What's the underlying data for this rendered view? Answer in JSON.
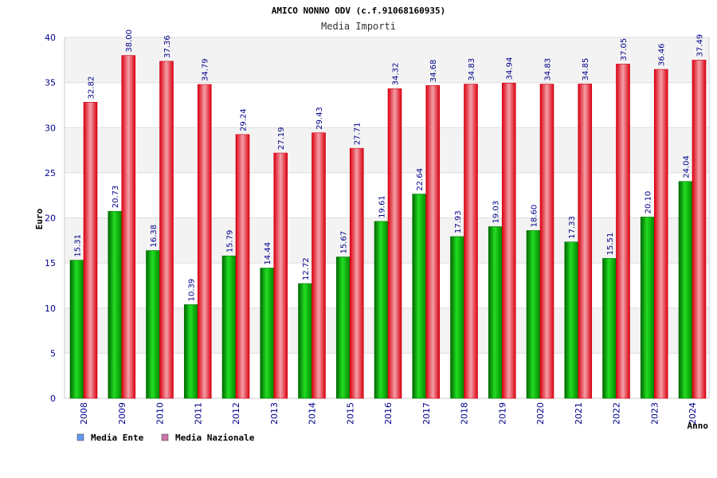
{
  "chart_data": {
    "type": "bar",
    "title": "AMICO NONNO ODV (c.f.91068160935)",
    "subtitle": "Media Importi",
    "xlabel": "Anno",
    "ylabel": "Euro",
    "ylim": [
      0,
      40
    ],
    "yticks": [
      0,
      5,
      10,
      15,
      20,
      25,
      30,
      35,
      40
    ],
    "grid": true,
    "legend_position": "bottom-left",
    "categories": [
      "2008",
      "2009",
      "2010",
      "2011",
      "2012",
      "2013",
      "2014",
      "2015",
      "2016",
      "2017",
      "2018",
      "2019",
      "2020",
      "2021",
      "2022",
      "2023",
      "2024"
    ],
    "series": [
      {
        "name": "Media Ente",
        "color": "#00b000",
        "legend_color": "#6699ee",
        "values": [
          15.31,
          20.73,
          16.38,
          10.39,
          15.79,
          14.44,
          12.72,
          15.67,
          19.61,
          22.64,
          17.93,
          19.03,
          18.6,
          17.33,
          15.51,
          20.1,
          24.04
        ],
        "labels": [
          "15.31",
          "20.73",
          "16.38",
          "10.39",
          "15.79",
          "14.44",
          "12.72",
          "15.67",
          "19.61",
          "22.64",
          "17.93",
          "19.03",
          "18.60",
          "17.33",
          "15.51",
          "20.10",
          "24.04"
        ]
      },
      {
        "name": "Media Nazionale",
        "color": "#ee1122",
        "legend_color": "#cc77aa",
        "values": [
          32.82,
          38.0,
          37.36,
          34.79,
          29.24,
          27.19,
          29.43,
          27.71,
          34.32,
          34.68,
          34.83,
          34.94,
          34.83,
          34.85,
          37.05,
          36.46,
          37.49
        ],
        "labels": [
          "32.82",
          "38.00",
          "37.36",
          "34.79",
          "29.24",
          "27.19",
          "29.43",
          "27.71",
          "34.32",
          "34.68",
          "34.83",
          "34.94",
          "34.83",
          "34.85",
          "37.05",
          "36.46",
          "37.49"
        ]
      }
    ]
  }
}
